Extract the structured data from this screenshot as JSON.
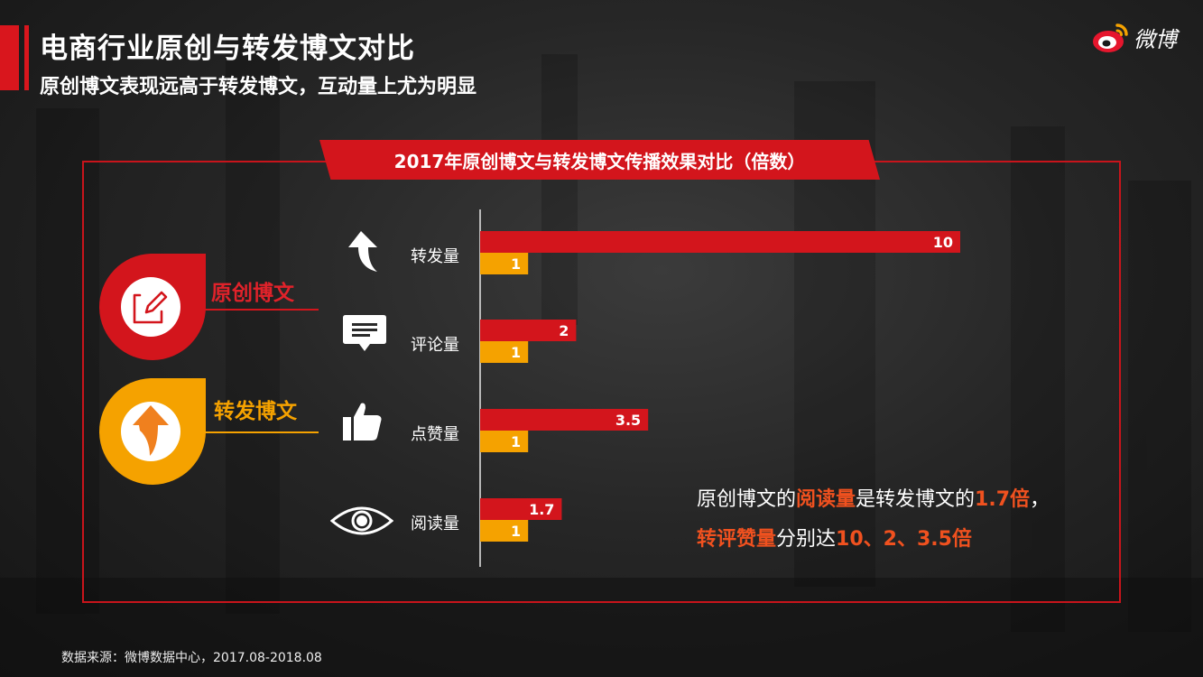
{
  "header": {
    "title": "电商行业原创与转发博文对比",
    "subtitle": "原创博文表现远高于转发博文，互动量上尤为明显",
    "logo_text": "微博"
  },
  "legend": {
    "original": "原创博文",
    "repost": "转发博文"
  },
  "colors": {
    "original": "#d3151c",
    "repost": "#f5a200",
    "highlight": "#f0511f"
  },
  "note": {
    "line1_a": "原创博文的",
    "line1_b": "阅读量",
    "line1_c": "是转发博文的",
    "line1_d": "1.7倍",
    "line1_e": "，",
    "line2_a": "转评赞量",
    "line2_b": "分别达",
    "line2_c": "10、2、3.5倍"
  },
  "source": "数据来源：微博数据中心，2017.08-2018.08",
  "chart_data": {
    "type": "bar",
    "orientation": "horizontal",
    "title": "2017年原创博文与转发博文传播效果对比（倍数）",
    "categories": [
      "转发量",
      "评论量",
      "点赞量",
      "阅读量"
    ],
    "icons": [
      "arrow-up-icon",
      "comment-icon",
      "thumbs-up-icon",
      "eye-icon"
    ],
    "series": [
      {
        "name": "原创博文",
        "values": [
          10,
          2,
          3.5,
          1.7
        ],
        "labels": [
          "10",
          "2",
          "3.5",
          "1.7"
        ]
      },
      {
        "name": "转发博文",
        "values": [
          1,
          1,
          1,
          1
        ],
        "labels": [
          "1",
          "1",
          "1",
          "1"
        ]
      }
    ],
    "xlim": [
      0,
      10
    ],
    "grid": false
  }
}
